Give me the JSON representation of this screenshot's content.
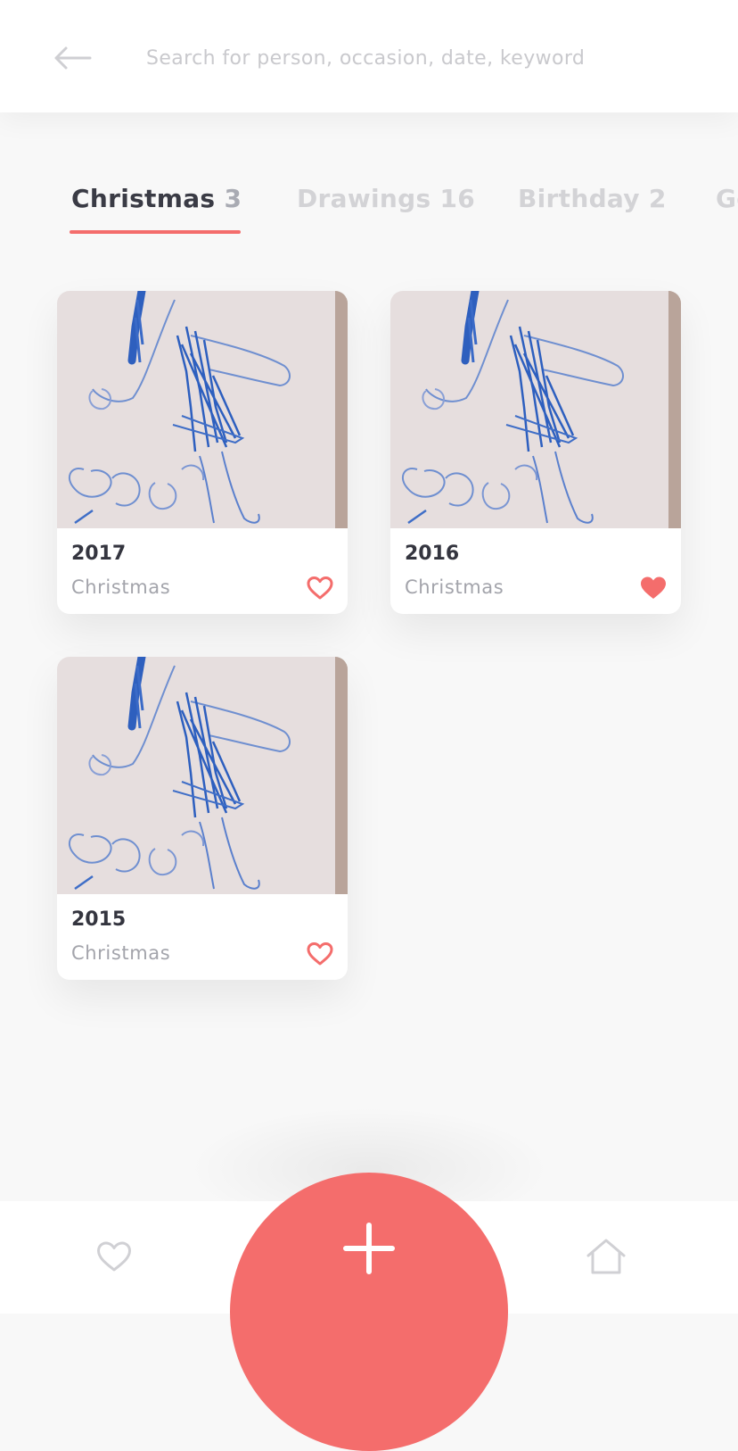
{
  "colors": {
    "accent": "#f46d6c",
    "active_tab_text": "#3a3b45",
    "inactive_tab_text": "#d3d3d6",
    "muted_text": "#a3a4ab"
  },
  "header": {
    "back_icon": "arrow-left-icon",
    "search_placeholder": "Search for person, occasion, date, keyword",
    "search_value": ""
  },
  "tabs": [
    {
      "label": "Christmas",
      "count": "3",
      "active": true
    },
    {
      "label": "Drawings",
      "count": "16",
      "active": false
    },
    {
      "label": "Birthday",
      "count": "2",
      "active": false
    },
    {
      "label": "Go",
      "count": "",
      "active": false
    }
  ],
  "cards": [
    {
      "year": "2017",
      "occasion": "Christmas",
      "favorite": false,
      "image": "child-drawing"
    },
    {
      "year": "2016",
      "occasion": "Christmas",
      "favorite": true,
      "image": "child-drawing"
    },
    {
      "year": "2015",
      "occasion": "Christmas",
      "favorite": false,
      "image": "child-drawing"
    }
  ],
  "bottom_nav": {
    "left_icon": "heart-outline-icon",
    "center_icon": "plus-icon",
    "right_icon": "home-icon"
  }
}
